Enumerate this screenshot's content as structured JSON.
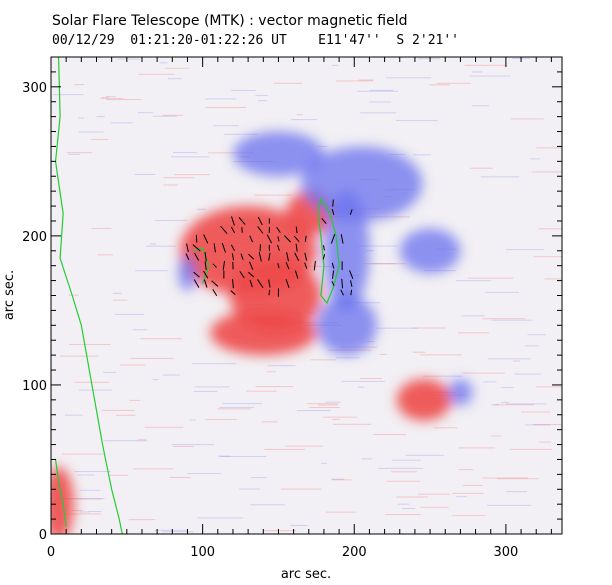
{
  "header": {
    "title": "Solar Flare Telescope (MTK) : vector magnetic field",
    "subtitle_date_time": "00/12/29  01:21:20-01:22:26 UT",
    "subtitle_position": "E11'47''  S 2'21''"
  },
  "axes": {
    "xlabel": "arc sec.",
    "ylabel": "arc sec.",
    "xlim": [
      0,
      337
    ],
    "ylim": [
      0,
      320
    ],
    "xticks": [
      "0",
      "100",
      "200",
      "300"
    ],
    "yticks": [
      "0",
      "100",
      "200",
      "300"
    ],
    "xtick_values": [
      0,
      100,
      200,
      300
    ],
    "ytick_values": [
      0,
      100,
      200,
      300
    ]
  },
  "image": {
    "background_color": "#f2f0f4",
    "positive_polarity_color": "#ee4a4a",
    "negative_polarity_color": "#6a70ee",
    "contour_color": "#22cc33",
    "vector_color": "#000000",
    "regions": [
      {
        "polarity": "positive",
        "cx": 130,
        "cy": 190,
        "rx": 45,
        "ry": 30
      },
      {
        "polarity": "positive",
        "cx": 148,
        "cy": 160,
        "rx": 30,
        "ry": 25
      },
      {
        "polarity": "positive",
        "cx": 170,
        "cy": 215,
        "rx": 15,
        "ry": 15
      },
      {
        "polarity": "positive",
        "cx": 140,
        "cy": 135,
        "rx": 35,
        "ry": 15
      },
      {
        "polarity": "positive",
        "cx": 246,
        "cy": 90,
        "rx": 18,
        "ry": 14
      },
      {
        "polarity": "positive",
        "cx": 5,
        "cy": 20,
        "rx": 10,
        "ry": 25
      },
      {
        "polarity": "negative",
        "cx": 195,
        "cy": 190,
        "rx": 15,
        "ry": 40
      },
      {
        "polarity": "negative",
        "cx": 150,
        "cy": 255,
        "rx": 30,
        "ry": 15
      },
      {
        "polarity": "negative",
        "cx": 205,
        "cy": 235,
        "rx": 40,
        "ry": 25
      },
      {
        "polarity": "negative",
        "cx": 90,
        "cy": 175,
        "rx": 6,
        "ry": 12
      },
      {
        "polarity": "negative",
        "cx": 270,
        "cy": 95,
        "rx": 8,
        "ry": 9
      },
      {
        "polarity": "negative",
        "cx": 250,
        "cy": 190,
        "rx": 20,
        "ry": 15
      },
      {
        "polarity": "negative",
        "cx": 195,
        "cy": 140,
        "rx": 20,
        "ry": 20
      }
    ]
  }
}
